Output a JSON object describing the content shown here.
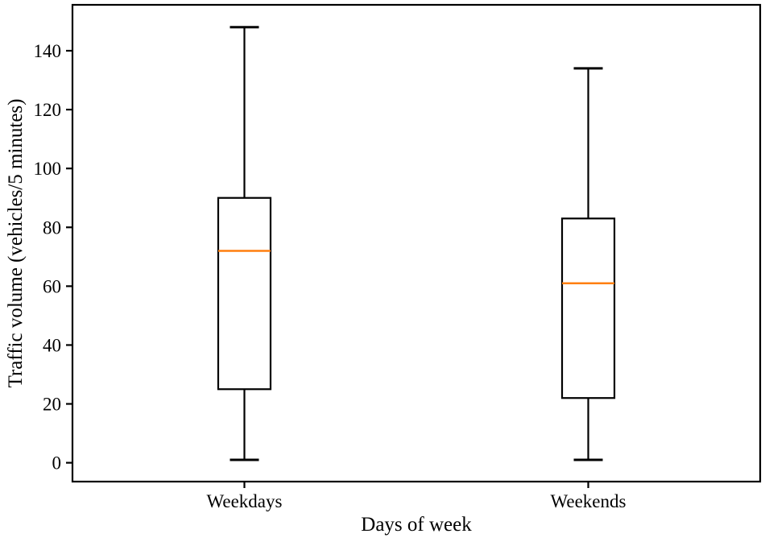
{
  "chart_data": {
    "type": "boxplot",
    "title": "",
    "xlabel": "Days of week",
    "ylabel": "Traffic volume (vehicles/5 minutes)",
    "categories": [
      "Weekdays",
      "Weekends"
    ],
    "series": [
      {
        "name": "Weekdays",
        "whisker_low": 1,
        "q1": 25,
        "median": 72,
        "q3": 90,
        "whisker_high": 148
      },
      {
        "name": "Weekends",
        "whisker_low": 1,
        "q1": 22,
        "median": 61,
        "q3": 83,
        "whisker_high": 134
      }
    ],
    "y_ticks": [
      0,
      20,
      40,
      60,
      80,
      100,
      120,
      140
    ],
    "ylim": [
      -6.4,
      155.6
    ],
    "grid": false,
    "legend": null,
    "colors": {
      "box": "#000000",
      "median": "#ff7f0e",
      "text": "#000000",
      "background": "#ffffff"
    }
  }
}
